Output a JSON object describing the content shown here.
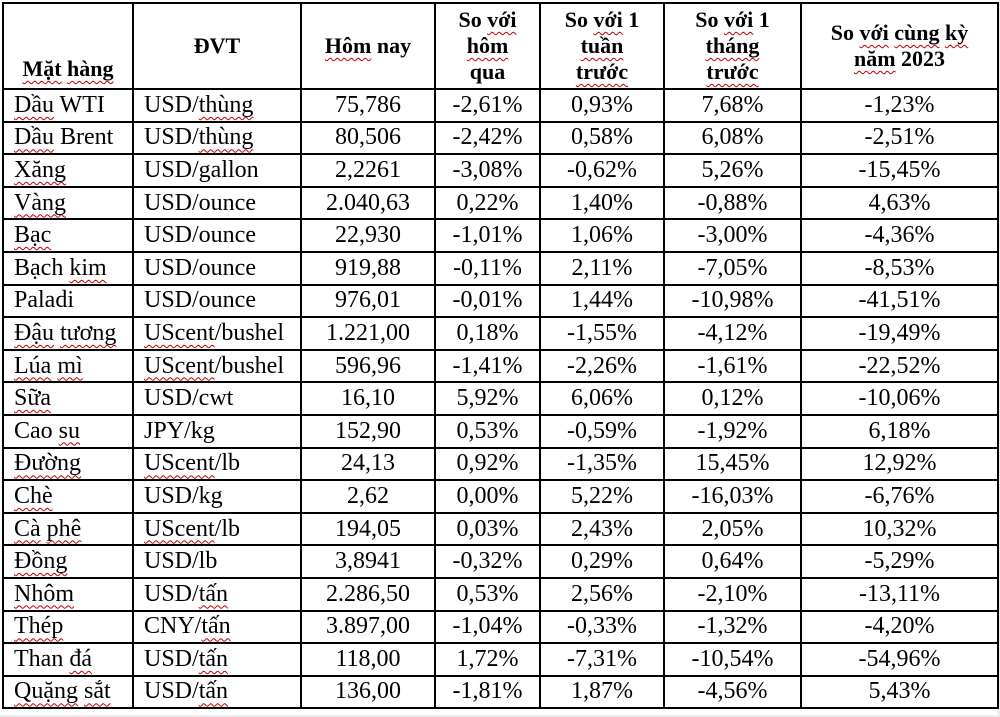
{
  "page": {
    "background": "#ffffff",
    "border_color": "#000000",
    "text_color": "#000000"
  },
  "spellcheck": {
    "color": "#c00000",
    "words": [
      "Mặt",
      "hàng",
      "Hôm",
      "với",
      "hôm",
      "tuần",
      "trước",
      "tháng",
      "cùng",
      "kỳ",
      "năm",
      "Dầu",
      "Xăng",
      "Vàng",
      "Bạc",
      "kim",
      "Đậu",
      "tương",
      "Lúa",
      "mì",
      "Sữa",
      "su",
      "Đường",
      "Chè",
      "Cà",
      "phê",
      "Đồng",
      "Nhôm",
      "Thép",
      "đá",
      "Quặng",
      "sắt",
      "thùng",
      "UScent",
      "tấn"
    ]
  },
  "table": {
    "headers": [
      {
        "field": "commodity",
        "lines": [
          "Mặt hàng"
        ]
      },
      {
        "field": "unit",
        "lines": [
          "ĐVT"
        ]
      },
      {
        "field": "today",
        "lines": [
          "Hôm nay"
        ]
      },
      {
        "field": "vs-yesterday",
        "lines": [
          "So với",
          "hôm",
          "qua"
        ]
      },
      {
        "field": "vs-last-week",
        "lines": [
          "So với 1",
          "tuần",
          "trước"
        ]
      },
      {
        "field": "vs-last-month",
        "lines": [
          "So với 1",
          "tháng",
          "trước"
        ]
      },
      {
        "field": "vs-2023",
        "lines": [
          "So với cùng kỳ",
          "năm 2023"
        ]
      }
    ],
    "rows": [
      [
        "Dầu WTI",
        "USD/thùng",
        "75,786",
        "-2,61%",
        "0,93%",
        "7,68%",
        "-1,23%"
      ],
      [
        "Dầu Brent",
        "USD/thùng",
        "80,506",
        "-2,42%",
        "0,58%",
        "6,08%",
        "-2,51%"
      ],
      [
        "Xăng",
        "USD/gallon",
        "2,2261",
        "-3,08%",
        "-0,62%",
        "5,26%",
        "-15,45%"
      ],
      [
        "Vàng",
        "USD/ounce",
        "2.040,63",
        "0,22%",
        "1,40%",
        "-0,88%",
        "4,63%"
      ],
      [
        "Bạc",
        "USD/ounce",
        "22,930",
        "-1,01%",
        "1,06%",
        "-3,00%",
        "-4,36%"
      ],
      [
        "Bạch kim",
        "USD/ounce",
        "919,88",
        "-0,11%",
        "2,11%",
        "-7,05%",
        "-8,53%"
      ],
      [
        "Paladi",
        "USD/ounce",
        "976,01",
        "-0,01%",
        "1,44%",
        "-10,98%",
        "-41,51%"
      ],
      [
        "Đậu tương",
        "UScent/bushel",
        "1.221,00",
        "0,18%",
        "-1,55%",
        "-4,12%",
        "-19,49%"
      ],
      [
        "Lúa mì",
        "UScent/bushel",
        "596,96",
        "-1,41%",
        "-2,26%",
        "-1,61%",
        "-22,52%"
      ],
      [
        "Sữa",
        "USD/cwt",
        "16,10",
        "5,92%",
        "6,06%",
        "0,12%",
        "-10,06%"
      ],
      [
        "Cao su",
        "JPY/kg",
        "152,90",
        "0,53%",
        "-0,59%",
        "-1,92%",
        "6,18%"
      ],
      [
        "Đường",
        "UScent/lb",
        "24,13",
        "0,92%",
        "-1,35%",
        "15,45%",
        "12,92%"
      ],
      [
        "Chè",
        "USD/kg",
        "2,62",
        "0,00%",
        "5,22%",
        "-16,03%",
        "-6,76%"
      ],
      [
        "Cà phê",
        "UScent/lb",
        "194,05",
        "0,03%",
        "2,43%",
        "2,05%",
        "10,32%"
      ],
      [
        "Đồng",
        "USD/lb",
        "3,8941",
        "-0,32%",
        "0,29%",
        "0,64%",
        "-5,29%"
      ],
      [
        "Nhôm",
        "USD/tấn",
        "2.286,50",
        "0,53%",
        "2,56%",
        "-2,10%",
        "-13,11%"
      ],
      [
        "Thép",
        "CNY/tấn",
        "3.897,00",
        "-1,04%",
        "-0,33%",
        "-1,32%",
        "-4,20%"
      ],
      [
        "Than đá",
        "USD/tấn",
        "118,00",
        "1,72%",
        "-7,31%",
        "-10,54%",
        "-54,96%"
      ],
      [
        "Quặng sắt",
        "USD/tấn",
        "136,00",
        "-1,81%",
        "1,87%",
        "-4,56%",
        "5,43%"
      ]
    ]
  }
}
